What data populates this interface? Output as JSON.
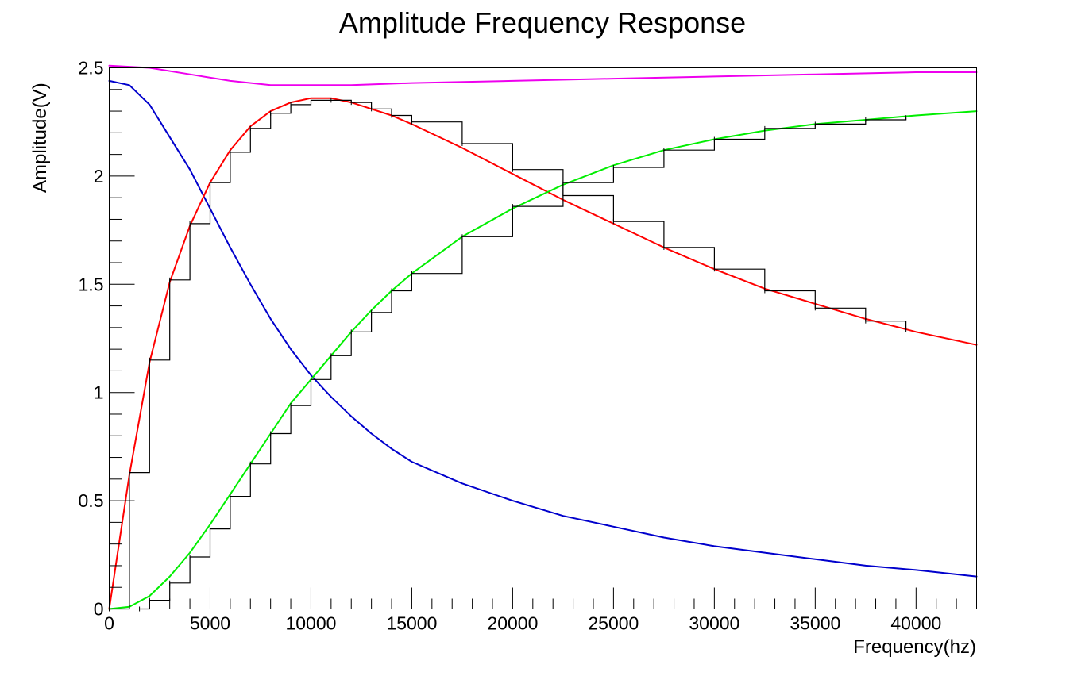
{
  "chart_data": {
    "type": "line",
    "title": "Amplitude Frequency Response",
    "xlabel": "Frequency(hz)",
    "ylabel": "Amplitude(V)",
    "xlim": [
      0,
      43000
    ],
    "ylim": [
      0,
      2.5
    ],
    "x_ticks": [
      0,
      5000,
      10000,
      15000,
      20000,
      25000,
      30000,
      35000,
      40000
    ],
    "x_tick_labels": [
      "0",
      "5000",
      "10000",
      "15000",
      "20000",
      "25000",
      "30000",
      "35000",
      "40000"
    ],
    "y_ticks": [
      0,
      0.5,
      1,
      1.5,
      2,
      2.5
    ],
    "y_tick_labels": [
      "0",
      "0.5",
      "1",
      "1.5",
      "2",
      "2.5"
    ],
    "grid": false,
    "legend": "none",
    "series": [
      {
        "color": "#0000cc",
        "style": "line",
        "x": [
          0,
          1000,
          2000,
          3000,
          4000,
          5000,
          6000,
          7000,
          8000,
          9000,
          10000,
          11000,
          12000,
          13000,
          14000,
          15000,
          17500,
          20000,
          22500,
          25000,
          27500,
          30000,
          32500,
          35000,
          37500,
          40000,
          43000
        ],
        "values": [
          2.44,
          2.42,
          2.33,
          2.18,
          2.03,
          1.85,
          1.67,
          1.5,
          1.34,
          1.2,
          1.08,
          0.98,
          0.89,
          0.81,
          0.74,
          0.68,
          0.58,
          0.5,
          0.43,
          0.38,
          0.33,
          0.29,
          0.26,
          0.23,
          0.2,
          0.18,
          0.15
        ]
      },
      {
        "color": "#ff0000",
        "style": "line",
        "x": [
          0,
          1000,
          2000,
          3000,
          4000,
          5000,
          6000,
          7000,
          8000,
          9000,
          10000,
          11000,
          12000,
          13000,
          14000,
          15000,
          17500,
          20000,
          22500,
          25000,
          27500,
          30000,
          32500,
          35000,
          37500,
          40000,
          43000
        ],
        "values": [
          0,
          0.62,
          1.14,
          1.51,
          1.77,
          1.97,
          2.12,
          2.23,
          2.3,
          2.34,
          2.36,
          2.36,
          2.34,
          2.31,
          2.28,
          2.24,
          2.13,
          2.01,
          1.89,
          1.78,
          1.67,
          1.57,
          1.48,
          1.41,
          1.34,
          1.28,
          1.22
        ]
      },
      {
        "color": "#00ee00",
        "style": "line",
        "x": [
          0,
          1000,
          2000,
          3000,
          4000,
          5000,
          6000,
          7000,
          8000,
          9000,
          10000,
          11000,
          12000,
          13000,
          14000,
          15000,
          17500,
          20000,
          22500,
          25000,
          27500,
          30000,
          32500,
          35000,
          37500,
          40000,
          43000
        ],
        "values": [
          0,
          0.01,
          0.06,
          0.15,
          0.26,
          0.39,
          0.53,
          0.67,
          0.81,
          0.95,
          1.06,
          1.17,
          1.28,
          1.38,
          1.47,
          1.55,
          1.72,
          1.85,
          1.96,
          2.05,
          2.12,
          2.17,
          2.21,
          2.24,
          2.26,
          2.28,
          2.3
        ]
      },
      {
        "color": "#ee00ee",
        "style": "line",
        "x": [
          0,
          2000,
          4000,
          6000,
          8000,
          10000,
          12000,
          15000,
          20000,
          25000,
          30000,
          35000,
          40000,
          43000
        ],
        "values": [
          2.51,
          2.5,
          2.47,
          2.44,
          2.42,
          2.42,
          2.42,
          2.43,
          2.44,
          2.45,
          2.46,
          2.47,
          2.48,
          2.48
        ]
      },
      {
        "color": "#000000",
        "style": "histogram",
        "x": [
          1500,
          2000,
          3000,
          4000,
          5000,
          6000,
          7000,
          8000,
          9000,
          10000,
          11000,
          12000,
          13000,
          14000,
          15000,
          17500,
          20000,
          22500,
          25000,
          27500,
          30000,
          32500,
          35000,
          37500,
          39500
        ],
        "values": [
          0,
          0.04,
          0.12,
          0.24,
          0.37,
          0.52,
          0.67,
          0.81,
          0.94,
          1.06,
          1.17,
          1.28,
          1.37,
          1.47,
          1.55,
          1.72,
          1.86,
          1.97,
          2.04,
          2.12,
          2.17,
          2.22,
          2.24,
          2.26,
          2.27
        ]
      },
      {
        "color": "#000000",
        "style": "histogram",
        "x": [
          0,
          1000,
          2000,
          3000,
          4000,
          5000,
          6000,
          7000,
          8000,
          9000,
          10000,
          11000,
          12000,
          13000,
          14000,
          15000,
          17500,
          20000,
          22500,
          25000,
          27500,
          30000,
          32500,
          35000,
          37500,
          39500
        ],
        "values": [
          0,
          0.63,
          1.15,
          1.52,
          1.78,
          1.97,
          2.11,
          2.22,
          2.29,
          2.33,
          2.35,
          2.35,
          2.34,
          2.31,
          2.28,
          2.25,
          2.15,
          2.03,
          1.91,
          1.79,
          1.67,
          1.57,
          1.47,
          1.39,
          1.33,
          1.29
        ]
      }
    ]
  }
}
